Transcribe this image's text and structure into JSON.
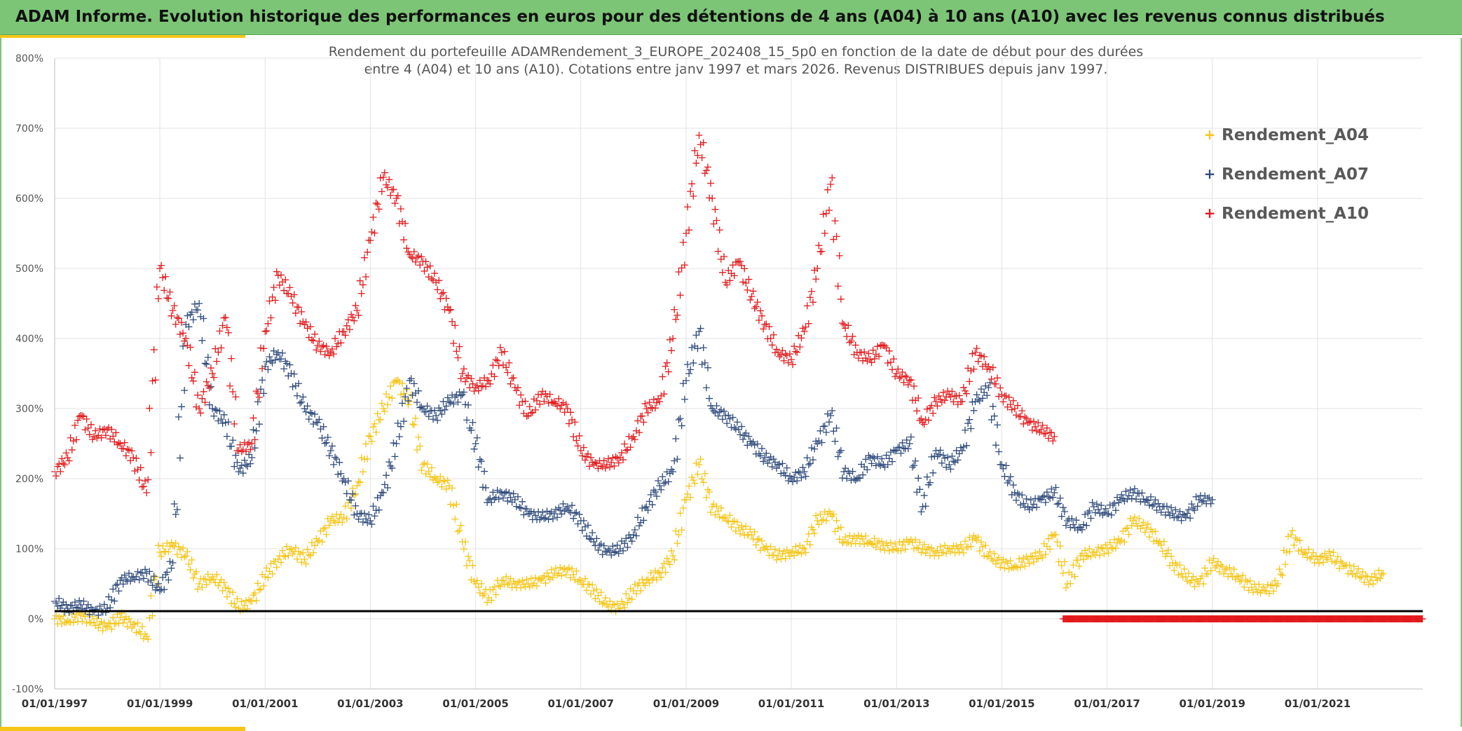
{
  "banner": {
    "title": "ADAM Informe. Evolution historique des performances en euros pour des détentions de 4 ans (A04) à 10 ans (A10) avec les revenus connus distribués"
  },
  "chart_data": {
    "type": "scatter",
    "title_line1": "Rendement du portefeuille ADAMRendement_3_EUROPE_202408_15_5p0  en fonction de la date de début pour des durées",
    "title_line2": "entre 4 (A04) et 10 ans (A10). Cotations entre janv 1997 et mars 2026. Revenus DISTRIBUES depuis janv 1997.",
    "xlabel": "",
    "ylabel": "",
    "marker": "+",
    "grid": true,
    "legend_position": "right",
    "reference_line_y": 11,
    "xlim": [
      "1997-01-01",
      "2023-01-01"
    ],
    "ylim": [
      -100,
      800
    ],
    "y_ticks": [
      -100,
      0,
      100,
      200,
      300,
      400,
      500,
      600,
      700,
      800
    ],
    "y_tick_labels": [
      "-100%",
      "0%",
      "100%",
      "200%",
      "300%",
      "400%",
      "500%",
      "600%",
      "700%",
      "800%"
    ],
    "x_ticks": [
      "1997-01-01",
      "1999-01-01",
      "2001-01-01",
      "2003-01-01",
      "2005-01-01",
      "2007-01-01",
      "2009-01-01",
      "2011-01-01",
      "2013-01-01",
      "2015-01-01",
      "2017-01-01",
      "2019-01-01",
      "2021-01-01"
    ],
    "x_tick_labels": [
      "01/01/1997",
      "01/01/1999",
      "01/01/2001",
      "01/01/2003",
      "01/01/2005",
      "01/01/2007",
      "01/01/2009",
      "01/01/2011",
      "01/01/2013",
      "01/01/2015",
      "01/01/2017",
      "01/01/2019",
      "01/01/2021"
    ],
    "series": [
      {
        "name": "Rendement_A04",
        "color": "#f5c518",
        "x": [
          "1997-01",
          "1997-04",
          "1997-07",
          "1997-10",
          "1998-01",
          "1998-04",
          "1998-07",
          "1998-10",
          "1999-01",
          "1999-04",
          "1999-07",
          "1999-10",
          "2000-01",
          "2000-04",
          "2000-07",
          "2000-10",
          "2001-01",
          "2001-04",
          "2001-07",
          "2001-10",
          "2002-01",
          "2002-04",
          "2002-07",
          "2002-10",
          "2003-01",
          "2003-04",
          "2003-07",
          "2003-10",
          "2004-01",
          "2004-04",
          "2004-07",
          "2004-10",
          "2005-01",
          "2005-04",
          "2005-07",
          "2005-10",
          "2006-01",
          "2006-04",
          "2006-07",
          "2006-10",
          "2007-01",
          "2007-04",
          "2007-07",
          "2007-10",
          "2008-01",
          "2008-04",
          "2008-07",
          "2008-10",
          "2009-01",
          "2009-04",
          "2009-07",
          "2009-10",
          "2010-01",
          "2010-04",
          "2010-07",
          "2010-10",
          "2011-01",
          "2011-04",
          "2011-07",
          "2011-10",
          "2012-01",
          "2012-04",
          "2012-07",
          "2012-10",
          "2013-01",
          "2013-04",
          "2013-07",
          "2013-10",
          "2014-01",
          "2014-04",
          "2014-07",
          "2014-10",
          "2015-01",
          "2015-04",
          "2015-07",
          "2015-10",
          "2016-01",
          "2016-04",
          "2016-07",
          "2016-10",
          "2017-01",
          "2017-04",
          "2017-07",
          "2017-10",
          "2018-01",
          "2018-04",
          "2018-07",
          "2018-10",
          "2019-01",
          "2019-04",
          "2019-07",
          "2019-10",
          "2020-01",
          "2020-04",
          "2020-07",
          "2020-10",
          "2021-01",
          "2021-04",
          "2021-07",
          "2021-10",
          "2022-01",
          "2022-04"
        ],
        "values": [
          0,
          -3,
          5,
          -5,
          -12,
          2,
          -8,
          -25,
          95,
          105,
          90,
          50,
          60,
          45,
          15,
          25,
          60,
          85,
          100,
          85,
          110,
          140,
          145,
          190,
          260,
          300,
          340,
          310,
          220,
          200,
          190,
          110,
          50,
          30,
          55,
          50,
          50,
          55,
          65,
          70,
          55,
          40,
          20,
          15,
          40,
          55,
          65,
          90,
          170,
          220,
          160,
          145,
          130,
          120,
          100,
          90,
          95,
          100,
          140,
          150,
          110,
          115,
          110,
          105,
          100,
          110,
          100,
          95,
          100,
          100,
          115,
          90,
          80,
          75,
          85,
          90,
          120,
          50,
          90,
          95,
          100,
          110,
          140,
          130,
          110,
          80,
          60,
          50,
          80,
          70,
          60,
          45,
          40,
          50,
          120,
          95,
          85,
          90,
          75,
          65,
          55,
          65
        ]
      },
      {
        "name": "Rendement_A07",
        "color": "#2f4b7c",
        "x": [
          "1997-01",
          "1997-04",
          "1997-07",
          "1997-10",
          "1998-01",
          "1998-04",
          "1998-07",
          "1998-10",
          "1999-01",
          "1999-04",
          "1999-07",
          "1999-10",
          "2000-01",
          "2000-04",
          "2000-07",
          "2000-10",
          "2001-01",
          "2001-04",
          "2001-07",
          "2001-10",
          "2002-01",
          "2002-04",
          "2002-07",
          "2002-10",
          "2003-01",
          "2003-04",
          "2003-07",
          "2003-10",
          "2004-01",
          "2004-04",
          "2004-07",
          "2004-10",
          "2005-01",
          "2005-04",
          "2005-07",
          "2005-10",
          "2006-01",
          "2006-04",
          "2006-07",
          "2006-10",
          "2007-01",
          "2007-04",
          "2007-07",
          "2007-10",
          "2008-01",
          "2008-04",
          "2008-07",
          "2008-10",
          "2009-01",
          "2009-04",
          "2009-07",
          "2009-10",
          "2010-01",
          "2010-04",
          "2010-07",
          "2010-10",
          "2011-01",
          "2011-04",
          "2011-07",
          "2011-10",
          "2012-01",
          "2012-04",
          "2012-07",
          "2012-10",
          "2013-01",
          "2013-04",
          "2013-07",
          "2013-10",
          "2014-01",
          "2014-04",
          "2014-07",
          "2014-10",
          "2015-01",
          "2015-04",
          "2015-07",
          "2015-10",
          "2016-01",
          "2016-04",
          "2016-07",
          "2016-10",
          "2017-01",
          "2017-04",
          "2017-07",
          "2017-10",
          "2018-01",
          "2018-04",
          "2018-07",
          "2018-10",
          "2019-01"
        ],
        "values": [
          25,
          15,
          20,
          10,
          15,
          55,
          60,
          65,
          40,
          80,
          420,
          450,
          300,
          280,
          210,
          230,
          360,
          380,
          350,
          300,
          280,
          240,
          200,
          150,
          140,
          180,
          250,
          340,
          300,
          290,
          310,
          320,
          250,
          170,
          180,
          170,
          150,
          145,
          150,
          160,
          140,
          110,
          95,
          100,
          120,
          160,
          190,
          210,
          340,
          410,
          300,
          290,
          270,
          250,
          230,
          220,
          200,
          210,
          250,
          290,
          210,
          200,
          230,
          220,
          240,
          250,
          160,
          240,
          220,
          240,
          310,
          330,
          220,
          180,
          160,
          170,
          180,
          140,
          130,
          160,
          150,
          170,
          180,
          170,
          160,
          150,
          145,
          170,
          170
        ]
      },
      {
        "name": "Rendement_A10",
        "color": "#e31a1c",
        "x": [
          "1997-01",
          "1997-04",
          "1997-07",
          "1997-10",
          "1998-01",
          "1998-04",
          "1998-07",
          "1998-10",
          "1999-01",
          "1999-04",
          "1999-07",
          "1999-10",
          "2000-01",
          "2000-04",
          "2000-07",
          "2000-10",
          "2001-01",
          "2001-04",
          "2001-07",
          "2001-10",
          "2002-01",
          "2002-04",
          "2002-07",
          "2002-10",
          "2003-01",
          "2003-04",
          "2003-07",
          "2003-10",
          "2004-01",
          "2004-04",
          "2004-07",
          "2004-10",
          "2005-01",
          "2005-04",
          "2005-07",
          "2005-10",
          "2006-01",
          "2006-04",
          "2006-07",
          "2006-10",
          "2007-01",
          "2007-04",
          "2007-07",
          "2007-10",
          "2008-01",
          "2008-04",
          "2008-07",
          "2008-10",
          "2009-01",
          "2009-04",
          "2009-07",
          "2009-10",
          "2010-01",
          "2010-04",
          "2010-07",
          "2010-10",
          "2011-01",
          "2011-04",
          "2011-07",
          "2011-10",
          "2012-01",
          "2012-04",
          "2012-07",
          "2012-10",
          "2013-01",
          "2013-04",
          "2013-07",
          "2013-10",
          "2014-01",
          "2014-04",
          "2014-07",
          "2014-10",
          "2015-01",
          "2015-04",
          "2015-07",
          "2015-10",
          "2016-01"
        ],
        "values": [
          210,
          230,
          290,
          260,
          270,
          250,
          230,
          180,
          500,
          440,
          400,
          300,
          350,
          430,
          240,
          250,
          410,
          490,
          460,
          420,
          390,
          380,
          410,
          440,
          540,
          630,
          600,
          520,
          510,
          480,
          440,
          350,
          330,
          340,
          380,
          330,
          290,
          320,
          310,
          300,
          240,
          220,
          220,
          230,
          260,
          300,
          310,
          400,
          550,
          690,
          600,
          480,
          510,
          460,
          420,
          380,
          370,
          410,
          500,
          620,
          420,
          380,
          370,
          390,
          350,
          340,
          280,
          310,
          320,
          310,
          380,
          360,
          320,
          300,
          280,
          270,
          260
        ]
      },
      {
        "name": "",
        "color": "#e31a1c",
        "x_range": [
          "2016-03",
          "2023-01"
        ],
        "values_constant": 0
      }
    ]
  }
}
